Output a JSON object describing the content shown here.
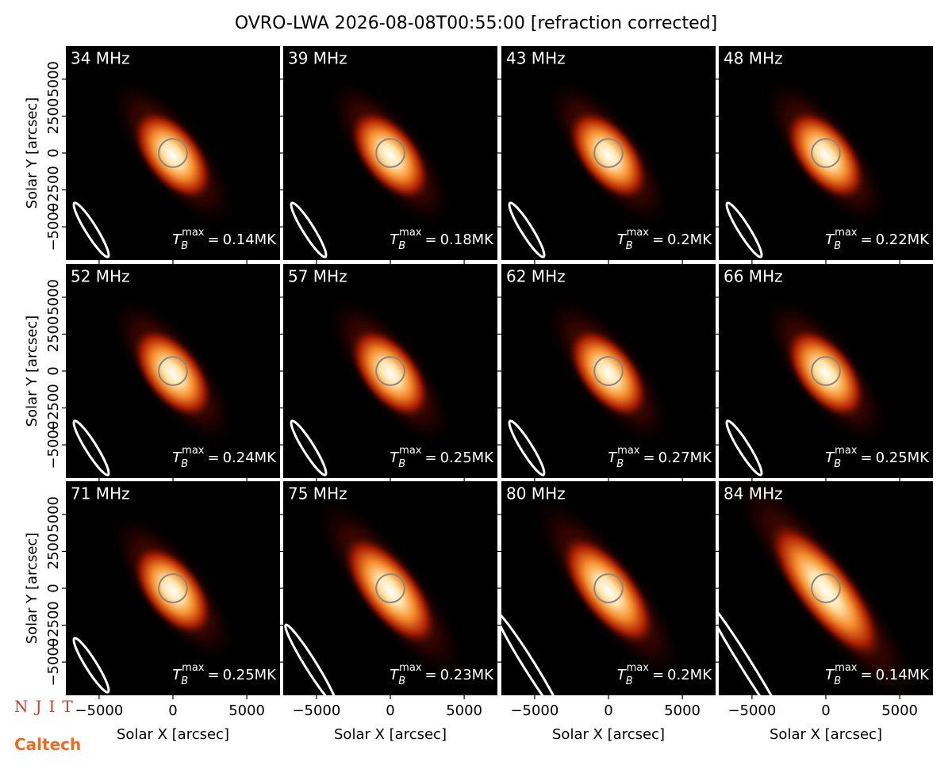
{
  "chart_data": {
    "type": "image",
    "title": "OVRO-LWA 2026-08-08T00:55:00 [refraction corrected]",
    "xlabel": "Solar X [arcsec]",
    "ylabel": "Solar Y [arcsec]",
    "xlim": [
      -7250,
      7250
    ],
    "ylim": [
      -7250,
      7250
    ],
    "xticks": [
      {
        "value": -5000,
        "label": "−5000"
      },
      0,
      5000
    ],
    "yticks": [
      {
        "value": -5000,
        "label": "−5000"
      },
      {
        "value": -2500,
        "label": "−2500"
      },
      0,
      2500,
      5000
    ],
    "tb_symbol": "T",
    "tb_sub": "B",
    "tb_sup": "max",
    "tb_eq": "=",
    "panels": [
      {
        "label": "34 MHz",
        "tb_max": "0.14MK"
      },
      {
        "label": "39 MHz",
        "tb_max": "0.18MK"
      },
      {
        "label": "43 MHz",
        "tb_max": "0.2MK"
      },
      {
        "label": "48 MHz",
        "tb_max": "0.22MK"
      },
      {
        "label": "52 MHz",
        "tb_max": "0.24MK"
      },
      {
        "label": "57 MHz",
        "tb_max": "0.25MK"
      },
      {
        "label": "62 MHz",
        "tb_max": "0.27MK"
      },
      {
        "label": "66 MHz",
        "tb_max": "0.25MK"
      },
      {
        "label": "71 MHz",
        "tb_max": "0.25MK"
      },
      {
        "label": "75 MHz",
        "tb_max": "0.23MK"
      },
      {
        "label": "80 MHz",
        "tb_max": "0.2MK"
      },
      {
        "label": "84 MHz",
        "tb_max": "0.14MK"
      }
    ]
  },
  "logos": [
    "NJIT",
    "Caltech"
  ]
}
